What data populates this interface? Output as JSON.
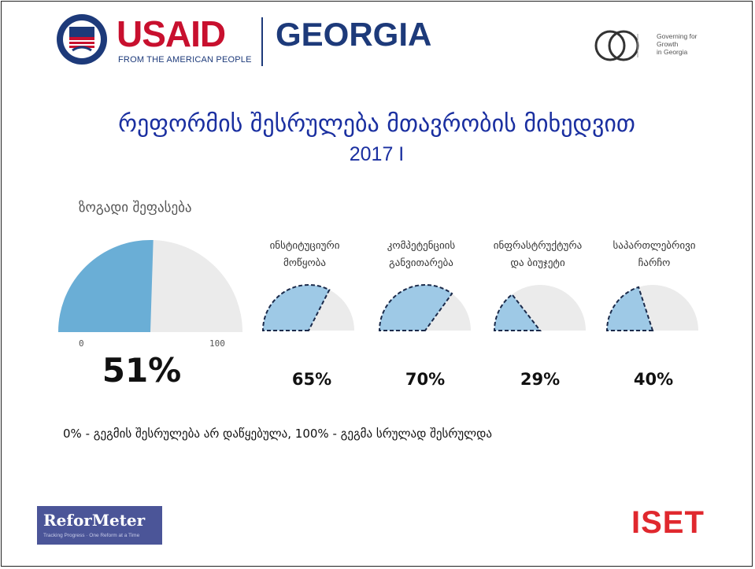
{
  "header": {
    "usaid_word": "USAID",
    "usaid_tagline": "FROM THE AMERICAN PEOPLE",
    "country": "GEORGIA",
    "partner_logo_lines": [
      "Governing for",
      "Growth",
      "in Georgia"
    ]
  },
  "title": "რეფორმის შესრულება მთავრობის მიხედვით",
  "subtitle": "2017 I",
  "overall": {
    "label": "ზოგადი შეფასება",
    "value_text": "51%",
    "value": 51,
    "axis_min": "0",
    "axis_max": "100"
  },
  "categories": [
    {
      "label_lines": [
        "ინსტიტუციური",
        "მოწყობა"
      ],
      "value_text": "65%",
      "value": 65
    },
    {
      "label_lines": [
        "კომპეტენციის",
        "განვითარება"
      ],
      "value_text": "70%",
      "value": 70
    },
    {
      "label_lines": [
        "ინფრასტრუქტურა",
        "და ბიუჯეტი"
      ],
      "value_text": "29%",
      "value": 29
    },
    {
      "label_lines": [
        "საპართლებრივი",
        "ჩარჩო"
      ],
      "value_text": "40%",
      "value": 40
    }
  ],
  "note": "0% - გეგმის შესრულება არ დაწყებულა, 100% - გეგმა სრულად შესრულდა",
  "footer": {
    "reformeter_word": "ReforMeter",
    "reformeter_tagline": "Tracking Progress · One Reform at a Time",
    "iset": "ISET"
  },
  "colors": {
    "title": "#1a2fa0",
    "gauge_fill_main": "#6aaed6",
    "gauge_fill_small": "#9ec9e6",
    "gauge_track": "#ebebeb",
    "usaid_red": "#c8102e",
    "usaid_blue": "#1d3a7a",
    "iset_red": "#e0282e",
    "reformeter_bg": "#4b5598"
  }
}
